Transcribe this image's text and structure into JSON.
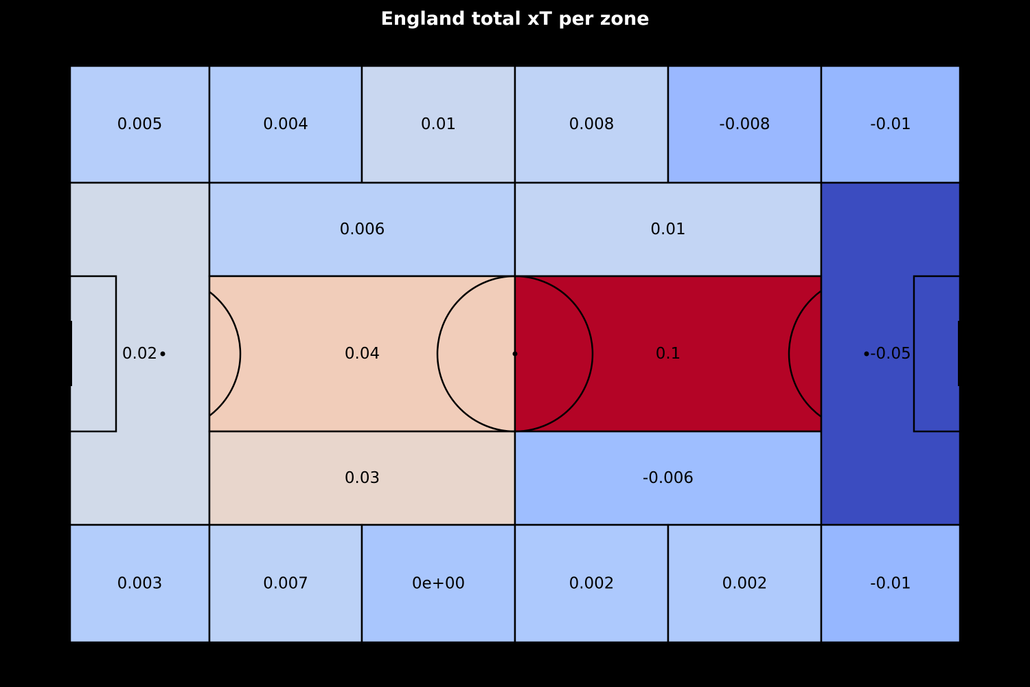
{
  "chart_data": {
    "type": "heatmap",
    "title": "England total xT per zone",
    "colormap": "coolwarm",
    "background_color": "#000000",
    "line_color": "#000000",
    "zones": [
      {
        "id": "top-left-wing",
        "label": "0.005",
        "value": 0.005,
        "color": "#b6cefa"
      },
      {
        "id": "top-left-mid-wing",
        "label": "0.004",
        "value": 0.004,
        "color": "#b3cdfb"
      },
      {
        "id": "top-centre-left-wing",
        "label": "0.01",
        "value": 0.01,
        "color": "#c9d7f0"
      },
      {
        "id": "top-centre-right-wing",
        "label": "0.008",
        "value": 0.008,
        "color": "#bfd3f6"
      },
      {
        "id": "top-right-mid-wing",
        "label": "-0.008",
        "value": -0.008,
        "color": "#9ab8ff"
      },
      {
        "id": "top-right-wing",
        "label": "-0.01",
        "value": -0.01,
        "color": "#96b7ff"
      },
      {
        "id": "left-defensive-zone",
        "label": "0.02",
        "value": 0.02,
        "color": "#d1dae9"
      },
      {
        "id": "left-half-space-upper",
        "label": "0.006",
        "value": 0.006,
        "color": "#b9d0f9"
      },
      {
        "id": "left-central",
        "label": "0.04",
        "value": 0.04,
        "color": "#f1cdba"
      },
      {
        "id": "left-half-space-lower",
        "label": "0.03",
        "value": 0.03,
        "color": "#e8d6cc"
      },
      {
        "id": "right-half-space-upper",
        "label": "0.01",
        "value": 0.01,
        "color": "#c3d5f4"
      },
      {
        "id": "right-central",
        "label": "0.1",
        "value": 0.1,
        "color": "#b40426"
      },
      {
        "id": "right-half-space-lower",
        "label": "-0.006",
        "value": -0.006,
        "color": "#9ebeff"
      },
      {
        "id": "right-attacking-zone",
        "label": "-0.05",
        "value": -0.05,
        "color": "#3b4cc0"
      },
      {
        "id": "bottom-left-wing",
        "label": "0.003",
        "value": 0.003,
        "color": "#b3cdfb"
      },
      {
        "id": "bottom-left-mid-wing",
        "label": "0.007",
        "value": 0.007,
        "color": "#bcd2f7"
      },
      {
        "id": "bottom-centre-left-wing",
        "label": "0e+00",
        "value": 0,
        "color": "#a9c6fd"
      },
      {
        "id": "bottom-centre-right-wing",
        "label": "0.002",
        "value": 0.002,
        "color": "#adc9fd"
      },
      {
        "id": "bottom-right-mid-wing",
        "label": "0.002",
        "value": 0.002,
        "color": "#afcafc"
      },
      {
        "id": "bottom-right-wing",
        "label": "-0.01",
        "value": -0.01,
        "color": "#96b7ff"
      }
    ]
  }
}
